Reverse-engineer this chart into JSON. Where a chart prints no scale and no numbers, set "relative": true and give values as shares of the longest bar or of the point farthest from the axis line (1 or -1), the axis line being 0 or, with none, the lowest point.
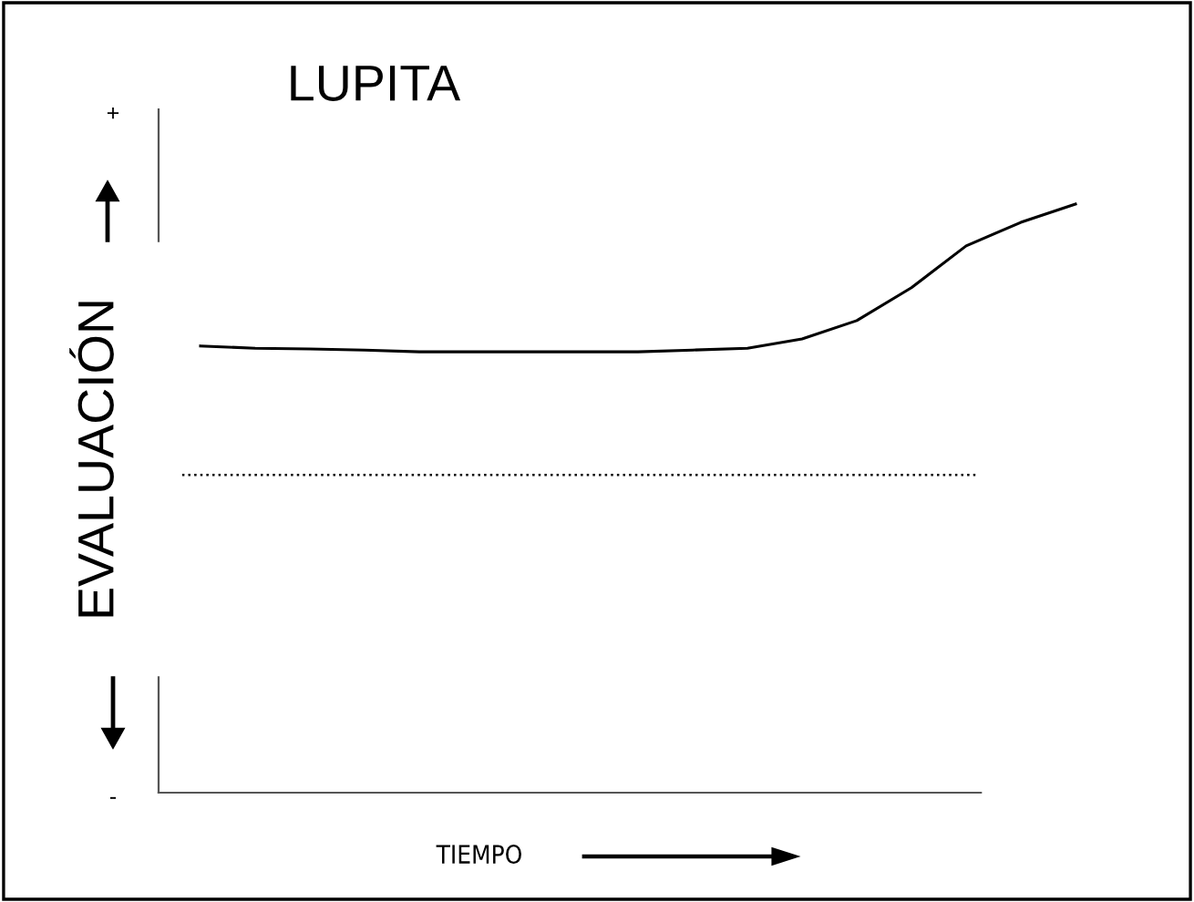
{
  "chart_data": {
    "type": "line",
    "title": "LUPITA",
    "xlabel": "TIEMPO",
    "ylabel": "EVALUACIÓN",
    "relative": true,
    "categories": [
      null,
      null,
      null,
      null,
      null,
      null,
      null,
      null,
      null,
      null,
      null,
      null,
      null,
      null,
      null,
      null,
      null
    ],
    "series": [
      {
        "color": "#000000",
        "values": [
          0.759,
          0.755,
          0.754,
          0.752,
          0.749,
          0.749,
          0.749,
          0.749,
          0.749,
          0.752,
          0.755,
          0.771,
          0.802,
          0.858,
          0.929,
          0.969,
          1.0
        ]
      }
    ],
    "ref_lines": [
      {
        "axis": "y",
        "value": 0.54,
        "label": null,
        "color": "#000000",
        "line_style": "dotted"
      }
    ],
    "annotations": [
      "+",
      "-"
    ],
    "marker": "none",
    "line_style": "solid"
  }
}
